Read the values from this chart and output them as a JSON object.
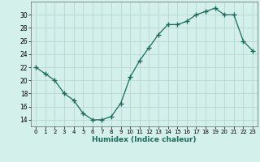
{
  "x": [
    0,
    1,
    2,
    3,
    4,
    5,
    6,
    7,
    8,
    9,
    10,
    11,
    12,
    13,
    14,
    15,
    16,
    17,
    18,
    19,
    20,
    21,
    22,
    23
  ],
  "y": [
    22,
    21,
    20,
    18,
    17,
    15,
    14,
    14,
    14.5,
    16.5,
    20.5,
    23,
    25,
    27,
    28.5,
    28.5,
    29,
    30,
    30.5,
    31,
    30,
    30,
    26,
    24.5
  ],
  "line_color": "#1a6b5a",
  "marker_color": "#1a6b5a",
  "bg_color": "#d4f0eb",
  "grid_color": "#b8d8d2",
  "xlabel": "Humidex (Indice chaleur)",
  "xlim": [
    -0.5,
    23.5
  ],
  "ylim": [
    13,
    32
  ],
  "yticks": [
    14,
    16,
    18,
    20,
    22,
    24,
    26,
    28,
    30
  ],
  "xticks": [
    0,
    1,
    2,
    3,
    4,
    5,
    6,
    7,
    8,
    9,
    10,
    11,
    12,
    13,
    14,
    15,
    16,
    17,
    18,
    19,
    20,
    21,
    22,
    23
  ]
}
